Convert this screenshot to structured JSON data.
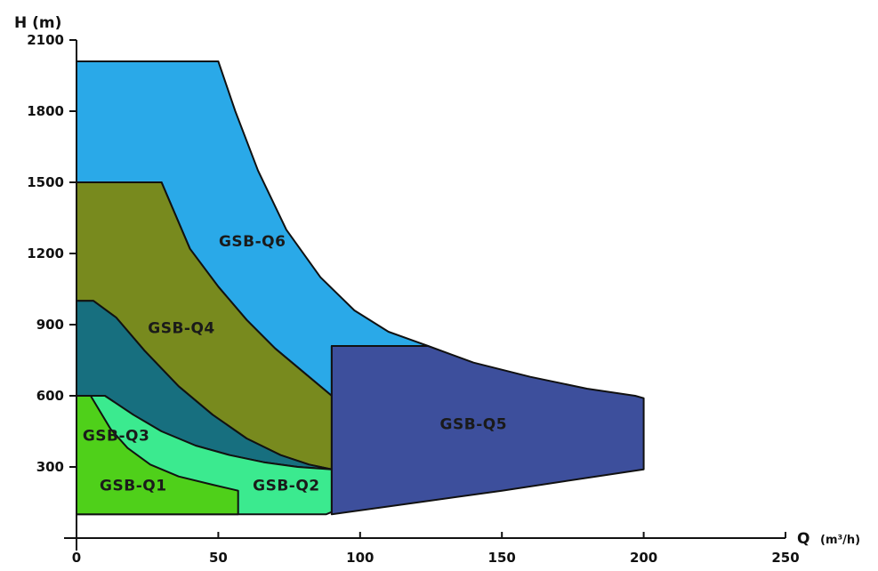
{
  "chart_data": {
    "type": "area",
    "title": "",
    "xlabel": "Q",
    "xlabel_unit": "(m³/h)",
    "ylabel": "H (m)",
    "xlim": [
      0,
      250
    ],
    "ylim": [
      0,
      2100
    ],
    "x_ticks": [
      0,
      50,
      100,
      150,
      200,
      250
    ],
    "y_ticks": [
      300,
      600,
      900,
      1200,
      1500,
      1800,
      2100
    ],
    "grid": false,
    "legend": "none",
    "series": [
      {
        "name": "GSB-Q6",
        "color": "#2aa9e8",
        "label_at": [
          62,
          1230
        ],
        "boundary": [
          [
            0,
            100
          ],
          [
            0,
            2010
          ],
          [
            50,
            2010
          ],
          [
            56,
            1800
          ],
          [
            64,
            1550
          ],
          [
            74,
            1300
          ],
          [
            86,
            1100
          ],
          [
            98,
            960
          ],
          [
            110,
            870
          ],
          [
            124,
            810
          ],
          [
            90,
            810
          ],
          [
            90,
            600
          ],
          [
            80,
            700
          ],
          [
            70,
            800
          ],
          [
            60,
            920
          ],
          [
            50,
            1060
          ],
          [
            40,
            1220
          ],
          [
            30,
            1500
          ],
          [
            0,
            1500
          ]
        ]
      },
      {
        "name": "GSB-Q4",
        "color": "#788a1e",
        "label_at": [
          37,
          865
        ],
        "boundary": [
          [
            0,
            100
          ],
          [
            0,
            1500
          ],
          [
            30,
            1500
          ],
          [
            40,
            1220
          ],
          [
            50,
            1060
          ],
          [
            60,
            920
          ],
          [
            70,
            800
          ],
          [
            80,
            700
          ],
          [
            90,
            600
          ],
          [
            90,
            290
          ],
          [
            82,
            310
          ],
          [
            72,
            350
          ],
          [
            60,
            420
          ],
          [
            48,
            520
          ],
          [
            36,
            640
          ],
          [
            24,
            790
          ],
          [
            14,
            930
          ],
          [
            6,
            1000
          ],
          [
            0,
            1000
          ]
        ]
      },
      {
        "name": "GSB-Q3",
        "color": "#176f7f",
        "label_at": [
          14,
          410
        ],
        "boundary": [
          [
            0,
            100
          ],
          [
            0,
            1000
          ],
          [
            6,
            1000
          ],
          [
            14,
            930
          ],
          [
            24,
            790
          ],
          [
            36,
            640
          ],
          [
            48,
            520
          ],
          [
            60,
            420
          ],
          [
            72,
            350
          ],
          [
            82,
            310
          ],
          [
            90,
            290
          ],
          [
            78,
            300
          ],
          [
            66,
            320
          ],
          [
            54,
            350
          ],
          [
            42,
            390
          ],
          [
            30,
            450
          ],
          [
            20,
            520
          ],
          [
            10,
            600
          ],
          [
            0,
            600
          ]
        ]
      },
      {
        "name": "GSB-Q2",
        "color": "#3bea8f",
        "label_at": [
          74,
          200
        ],
        "boundary": [
          [
            0,
            100
          ],
          [
            0,
            600
          ],
          [
            10,
            600
          ],
          [
            20,
            520
          ],
          [
            30,
            450
          ],
          [
            42,
            390
          ],
          [
            54,
            350
          ],
          [
            66,
            320
          ],
          [
            78,
            300
          ],
          [
            90,
            290
          ],
          [
            90,
            110
          ],
          [
            88,
            100
          ]
        ]
      },
      {
        "name": "GSB-Q1",
        "color": "#4fd01a",
        "label_at": [
          20,
          200
        ],
        "boundary": [
          [
            0,
            100
          ],
          [
            0,
            600
          ],
          [
            5,
            600
          ],
          [
            8,
            540
          ],
          [
            12,
            460
          ],
          [
            18,
            380
          ],
          [
            26,
            310
          ],
          [
            36,
            260
          ],
          [
            48,
            225
          ],
          [
            57,
            200
          ],
          [
            57,
            100
          ]
        ]
      },
      {
        "name": "GSB-Q5",
        "color": "#3d4f9c",
        "label_at": [
          140,
          460
        ],
        "boundary": [
          [
            90,
            100
          ],
          [
            90,
            810
          ],
          [
            124,
            810
          ],
          [
            140,
            740
          ],
          [
            160,
            680
          ],
          [
            180,
            630
          ],
          [
            197,
            600
          ],
          [
            200,
            590
          ],
          [
            200,
            290
          ],
          [
            150,
            200
          ],
          [
            120,
            150
          ],
          [
            90,
            100
          ]
        ]
      }
    ]
  }
}
